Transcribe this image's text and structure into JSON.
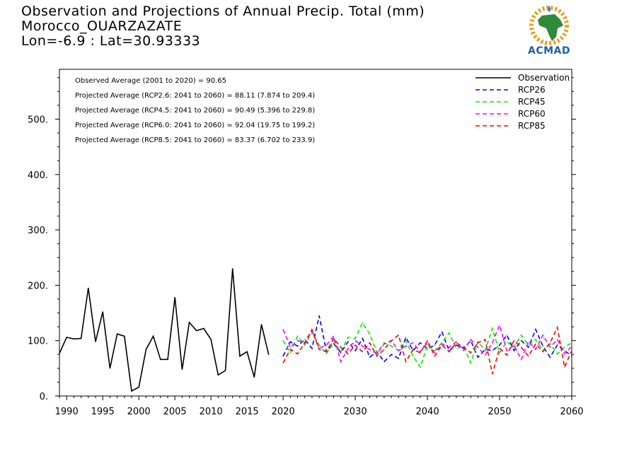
{
  "title": {
    "line1": "Observation and Projections of Annual Precip. Total (mm)",
    "line2": "Morocco_OUARZAZATE",
    "line3": "Lon=-6.9 : Lat=30.93333"
  },
  "logo": {
    "text": "ACMAD"
  },
  "annotations": [
    "Observed Average (2001 to 2020) = 90.65",
    "Projected Average (RCP2.6: 2041 to 2060) = 88.11 (7.874 to 209.4)",
    "Projected Average (RCP4.5: 2041 to 2060) = 90.49 (5.396 to 229.8)",
    "Projected Average (RCP6.0: 2041 to 2060) = 92.04 (19.75 to 199.2)",
    "Projected Average (RCP8.5: 2041 to 2060) = 83.37 (6.702 to 233.9)"
  ],
  "chart_data": {
    "type": "line",
    "xlim": [
      1989,
      2060
    ],
    "ylim": [
      0,
      590
    ],
    "x_ticks": [
      1990,
      1995,
      2000,
      2005,
      2010,
      2015,
      2020,
      2030,
      2040,
      2050,
      2060
    ],
    "y_ticks": [
      0,
      100,
      200,
      300,
      400,
      500
    ],
    "y_tick_labels": [
      "0.",
      "100.",
      "200.",
      "300.",
      "400.",
      "500."
    ],
    "legend_position": "top-right",
    "series": [
      {
        "name": "Observation",
        "color": "#000000",
        "dashed": false,
        "x": [
          1989,
          1990,
          1991,
          1992,
          1993,
          1994,
          1995,
          1996,
          1997,
          1998,
          1999,
          2000,
          2001,
          2002,
          2003,
          2004,
          2005,
          2006,
          2007,
          2008,
          2009,
          2010,
          2011,
          2012,
          2013,
          2014,
          2015,
          2016,
          2017,
          2018
        ],
        "values": [
          77,
          106,
          103,
          104,
          195,
          98,
          152,
          50,
          112,
          108,
          9,
          16,
          84,
          108,
          66,
          66,
          178,
          48,
          133,
          118,
          122,
          102,
          38,
          46,
          230,
          72,
          80,
          34,
          129,
          75
        ]
      },
      {
        "name": "RCP26",
        "color": "#0000ff",
        "dashed": true,
        "x": [
          2020,
          2021,
          2022,
          2023,
          2024,
          2025,
          2026,
          2027,
          2028,
          2029,
          2030,
          2031,
          2032,
          2033,
          2034,
          2035,
          2036,
          2037,
          2038,
          2039,
          2040,
          2041,
          2042,
          2043,
          2044,
          2045,
          2046,
          2047,
          2048,
          2049,
          2050,
          2051,
          2052,
          2053,
          2054,
          2055,
          2056,
          2057,
          2058,
          2059,
          2060
        ],
        "values": [
          72,
          98,
          90,
          102,
          86,
          145,
          80,
          95,
          78,
          98,
          82,
          104,
          70,
          80,
          62,
          75,
          68,
          106,
          82,
          96,
          85,
          92,
          116,
          82,
          92,
          86,
          100,
          70,
          84,
          82,
          92,
          110,
          82,
          100,
          88,
          120,
          90,
          70,
          92,
          82,
          72
        ]
      },
      {
        "name": "RCP45",
        "color": "#00ee00",
        "dashed": true,
        "x": [
          2020,
          2021,
          2022,
          2023,
          2024,
          2025,
          2026,
          2027,
          2028,
          2029,
          2030,
          2031,
          2032,
          2033,
          2034,
          2035,
          2036,
          2037,
          2038,
          2039,
          2040,
          2041,
          2042,
          2043,
          2044,
          2045,
          2046,
          2047,
          2048,
          2049,
          2050,
          2051,
          2052,
          2053,
          2054,
          2055,
          2056,
          2057,
          2058,
          2059,
          2060
        ],
        "values": [
          100,
          78,
          108,
          92,
          115,
          92,
          76,
          100,
          80,
          106,
          104,
          132,
          112,
          78,
          96,
          90,
          82,
          100,
          72,
          52,
          92,
          82,
          96,
          114,
          86,
          90,
          60,
          98,
          82,
          122,
          78,
          98,
          88,
          110,
          92,
          102,
          82,
          94,
          76,
          88,
          96
        ]
      },
      {
        "name": "RCP60",
        "color": "#ff00ff",
        "dashed": true,
        "x": [
          2020,
          2021,
          2022,
          2023,
          2024,
          2025,
          2026,
          2027,
          2028,
          2029,
          2030,
          2031,
          2032,
          2033,
          2034,
          2035,
          2036,
          2037,
          2038,
          2039,
          2040,
          2041,
          2042,
          2043,
          2044,
          2045,
          2046,
          2047,
          2048,
          2049,
          2050,
          2051,
          2052,
          2053,
          2054,
          2055,
          2056,
          2057,
          2058,
          2059,
          2060
        ],
        "values": [
          120,
          88,
          100,
          96,
          118,
          86,
          92,
          108,
          62,
          86,
          100,
          90,
          84,
          76,
          94,
          100,
          82,
          90,
          96,
          80,
          96,
          78,
          94,
          88,
          98,
          82,
          102,
          88,
          74,
          96,
          128,
          82,
          92,
          66,
          98,
          84,
          110,
          88,
          102,
          76,
          90
        ]
      },
      {
        "name": "RCP85",
        "color": "#ff0000",
        "dashed": true,
        "x": [
          2020,
          2021,
          2022,
          2023,
          2024,
          2025,
          2026,
          2027,
          2028,
          2029,
          2030,
          2031,
          2032,
          2033,
          2034,
          2035,
          2036,
          2037,
          2038,
          2039,
          2040,
          2041,
          2042,
          2043,
          2044,
          2045,
          2046,
          2047,
          2048,
          2049,
          2050,
          2051,
          2052,
          2053,
          2054,
          2055,
          2056,
          2057,
          2058,
          2059,
          2060
        ],
        "values": [
          60,
          84,
          76,
          96,
          120,
          84,
          80,
          104,
          88,
          76,
          92,
          80,
          96,
          72,
          84,
          100,
          110,
          62,
          84,
          78,
          100,
          72,
          92,
          80,
          96,
          88,
          78,
          96,
          102,
          40,
          86,
          74,
          100,
          88,
          72,
          94,
          80,
          96,
          124,
          52,
          82
        ]
      }
    ]
  }
}
